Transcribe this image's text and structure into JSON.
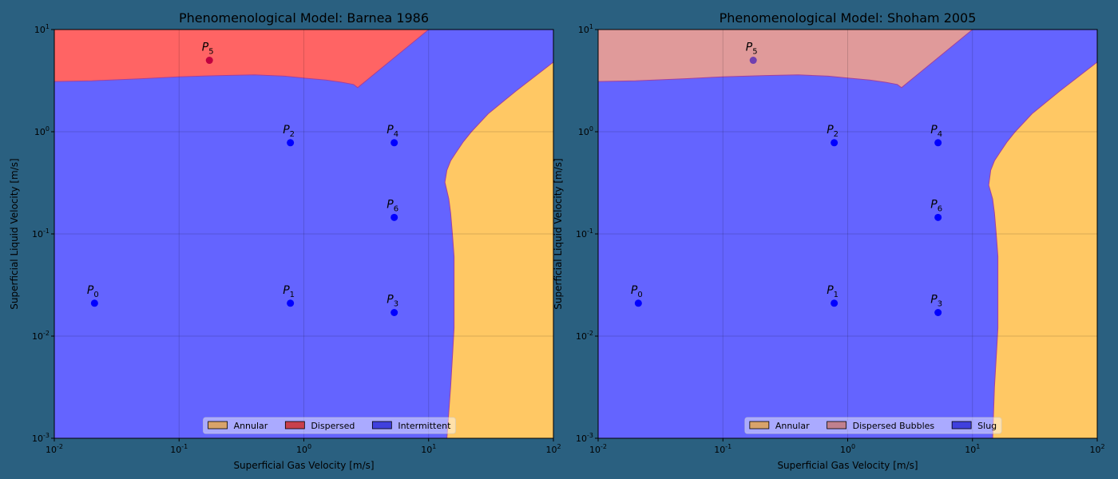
{
  "figure": {
    "background": "#2a6080"
  },
  "chart_data": [
    {
      "type": "area",
      "title": "Phenomenological Model: Barnea 1986",
      "xlabel": "Superficial Gas Velocity [m/s]",
      "ylabel": "Superficial Liquid Velocity [m/s]",
      "xscale": "log",
      "yscale": "log",
      "xlim": [
        0.01,
        100
      ],
      "ylim": [
        0.001,
        10
      ],
      "xticks": [
        0.01,
        0.1,
        1,
        10,
        100
      ],
      "xtick_labels": [
        [
          "10",
          "-2"
        ],
        [
          "10",
          "-1"
        ],
        [
          "10",
          "0"
        ],
        [
          "10",
          "1"
        ],
        [
          "10",
          "2"
        ]
      ],
      "yticks": [
        0.001,
        0.01,
        0.1,
        1,
        10
      ],
      "ytick_labels": [
        [
          "10",
          "-3"
        ],
        [
          "10",
          "-2"
        ],
        [
          "10",
          "-1"
        ],
        [
          "10",
          "0"
        ],
        [
          "10",
          "1"
        ]
      ],
      "grid": true,
      "legend": {
        "location": "bottom-center",
        "entries": [
          {
            "label": "Annular",
            "color": "#d8a36a"
          },
          {
            "label": "Dispersed",
            "color": "#c8404c"
          },
          {
            "label": "Intermittent",
            "color": "#4040dd"
          }
        ]
      },
      "regions": [
        {
          "name": "Dispersed",
          "color": "#ff6464",
          "boundary": [
            [
              0.01,
              10
            ],
            [
              10,
              10
            ],
            [
              2.7,
              2.7
            ],
            [
              2.5,
              2.9
            ],
            [
              2,
              3.05
            ],
            [
              1.5,
              3.2
            ],
            [
              1,
              3.35
            ],
            [
              0.7,
              3.5
            ],
            [
              0.4,
              3.6
            ],
            [
              0.22,
              3.55
            ],
            [
              0.1,
              3.45
            ],
            [
              0.05,
              3.3
            ],
            [
              0.02,
              3.15
            ],
            [
              0.01,
              3.1
            ]
          ]
        },
        {
          "name": "Annular",
          "color": "#ffc864",
          "boundary": [
            [
              14,
              0.001
            ],
            [
              15,
              0.0032
            ],
            [
              15.6,
              0.007
            ],
            [
              16,
              0.012
            ],
            [
              16,
              0.06
            ],
            [
              15.5,
              0.1
            ],
            [
              15,
              0.16
            ],
            [
              14.5,
              0.22
            ],
            [
              13.5,
              0.32
            ],
            [
              14,
              0.42
            ],
            [
              15,
              0.52
            ],
            [
              16.5,
              0.62
            ],
            [
              19,
              0.8
            ],
            [
              22,
              1
            ],
            [
              30,
              1.5
            ],
            [
              50,
              2.5
            ],
            [
              100,
              4.8
            ],
            [
              100,
              0.001
            ]
          ]
        }
      ],
      "background_region": {
        "name": "Intermittent",
        "color": "#6464ff"
      },
      "points": [
        {
          "label": "P",
          "sub": "0",
          "x": 0.021,
          "y": 0.021,
          "color": "#0000ff"
        },
        {
          "label": "P",
          "sub": "1",
          "x": 0.78,
          "y": 0.021,
          "color": "#0000ff"
        },
        {
          "label": "P",
          "sub": "2",
          "x": 0.78,
          "y": 0.78,
          "color": "#0000ff"
        },
        {
          "label": "P",
          "sub": "3",
          "x": 5.3,
          "y": 0.017,
          "color": "#0000ff"
        },
        {
          "label": "P",
          "sub": "4",
          "x": 5.3,
          "y": 0.78,
          "color": "#0000ff"
        },
        {
          "label": "P",
          "sub": "5",
          "x": 0.175,
          "y": 5.0,
          "color": "#c00040"
        },
        {
          "label": "P",
          "sub": "6",
          "x": 5.3,
          "y": 0.145,
          "color": "#0000ff"
        }
      ]
    },
    {
      "type": "area",
      "title": "Phenomenological Model: Shoham 2005",
      "xlabel": "Superficial Gas Velocity [m/s]",
      "ylabel": "Superficial Liquid Velocity [m/s]",
      "xscale": "log",
      "yscale": "log",
      "xlim": [
        0.01,
        100
      ],
      "ylim": [
        0.001,
        10
      ],
      "xticks": [
        0.01,
        0.1,
        1,
        10,
        100
      ],
      "xtick_labels": [
        [
          "10",
          "-2"
        ],
        [
          "10",
          "-1"
        ],
        [
          "10",
          "0"
        ],
        [
          "10",
          "1"
        ],
        [
          "10",
          "2"
        ]
      ],
      "yticks": [
        0.001,
        0.01,
        0.1,
        1,
        10
      ],
      "ytick_labels": [
        [
          "10",
          "-3"
        ],
        [
          "10",
          "-2"
        ],
        [
          "10",
          "-1"
        ],
        [
          "10",
          "0"
        ],
        [
          "10",
          "1"
        ]
      ],
      "grid": true,
      "legend": {
        "location": "bottom-center",
        "entries": [
          {
            "label": "Annular",
            "color": "#d8a36a"
          },
          {
            "label": "Dispersed Bubbles",
            "color": "#c0808e"
          },
          {
            "label": "Slug",
            "color": "#4040dd"
          }
        ]
      },
      "regions": [
        {
          "name": "Dispersed Bubbles",
          "color": "#e09a9a",
          "boundary": [
            [
              0.01,
              10
            ],
            [
              10,
              10
            ],
            [
              2.7,
              2.7
            ],
            [
              2.5,
              2.9
            ],
            [
              2,
              3.05
            ],
            [
              1.5,
              3.2
            ],
            [
              1,
              3.35
            ],
            [
              0.7,
              3.5
            ],
            [
              0.4,
              3.6
            ],
            [
              0.22,
              3.55
            ],
            [
              0.1,
              3.45
            ],
            [
              0.05,
              3.3
            ],
            [
              0.02,
              3.15
            ],
            [
              0.01,
              3.1
            ]
          ]
        },
        {
          "name": "Annular",
          "color": "#ffc864",
          "boundary": [
            [
              14.5,
              0.001
            ],
            [
              15,
              0.0032
            ],
            [
              15.6,
              0.007
            ],
            [
              16,
              0.012
            ],
            [
              16,
              0.06
            ],
            [
              15.5,
              0.1
            ],
            [
              15,
              0.16
            ],
            [
              14.5,
              0.22
            ],
            [
              13.5,
              0.3
            ],
            [
              14,
              0.42
            ],
            [
              15,
              0.52
            ],
            [
              16.5,
              0.62
            ],
            [
              19,
              0.8
            ],
            [
              22,
              1
            ],
            [
              30,
              1.5
            ],
            [
              50,
              2.5
            ],
            [
              100,
              4.8
            ],
            [
              100,
              0.001
            ]
          ]
        }
      ],
      "background_region": {
        "name": "Slug",
        "color": "#6464ff"
      },
      "points": [
        {
          "label": "P",
          "sub": "0",
          "x": 0.021,
          "y": 0.021,
          "color": "#0000ff"
        },
        {
          "label": "P",
          "sub": "1",
          "x": 0.78,
          "y": 0.021,
          "color": "#0000ff"
        },
        {
          "label": "P",
          "sub": "2",
          "x": 0.78,
          "y": 0.78,
          "color": "#0000ff"
        },
        {
          "label": "P",
          "sub": "3",
          "x": 5.3,
          "y": 0.017,
          "color": "#0000ff"
        },
        {
          "label": "P",
          "sub": "4",
          "x": 5.3,
          "y": 0.78,
          "color": "#0000ff"
        },
        {
          "label": "P",
          "sub": "5",
          "x": 0.175,
          "y": 5.0,
          "color": "#7040b0"
        },
        {
          "label": "P",
          "sub": "6",
          "x": 5.3,
          "y": 0.145,
          "color": "#0000ff"
        }
      ]
    }
  ]
}
